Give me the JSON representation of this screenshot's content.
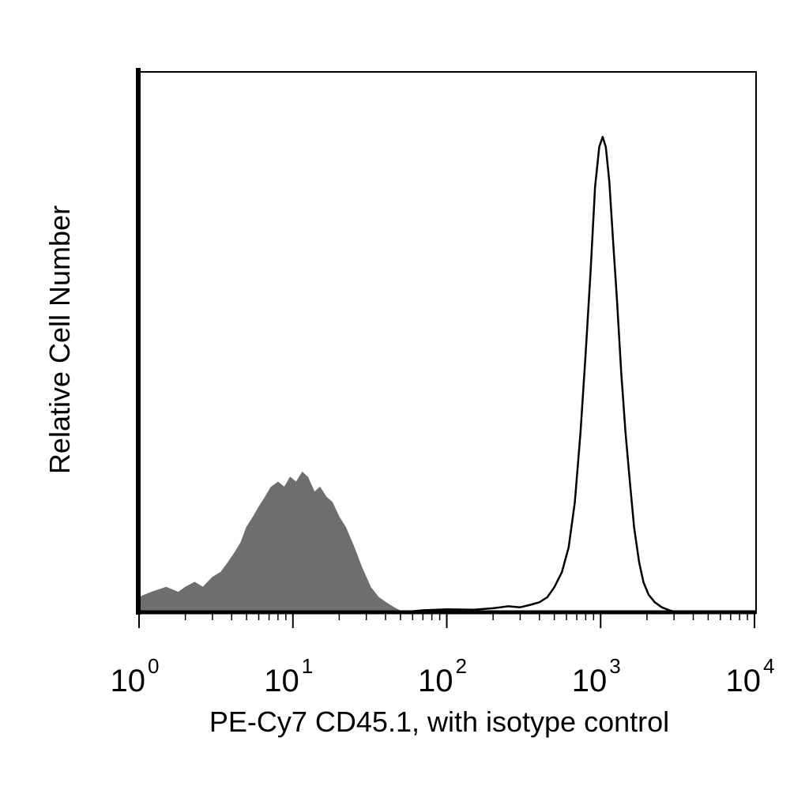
{
  "chart_data": {
    "type": "area",
    "title": "",
    "xlabel": "PE-Cy7 CD45.1, with isotype control",
    "ylabel": "Relative Cell Number",
    "x_scale": "log",
    "xlim": [
      1,
      10000
    ],
    "ylim": [
      0,
      1.08
    ],
    "grid": false,
    "legend": "none",
    "x_ticks": [
      {
        "base": "10",
        "exp": "0",
        "value": 1
      },
      {
        "base": "10",
        "exp": "1",
        "value": 10
      },
      {
        "base": "10",
        "exp": "2",
        "value": 100
      },
      {
        "base": "10",
        "exp": "3",
        "value": 1000
      },
      {
        "base": "10",
        "exp": "4",
        "value": 10000
      }
    ],
    "series": [
      {
        "role": "isotype control",
        "style": "filled",
        "color": "#6e6e6e",
        "points": [
          [
            1.0,
            0.03
          ],
          [
            1.2,
            0.04
          ],
          [
            1.5,
            0.05
          ],
          [
            1.8,
            0.04
          ],
          [
            2.0,
            0.05
          ],
          [
            2.3,
            0.06
          ],
          [
            2.6,
            0.05
          ],
          [
            3.0,
            0.07
          ],
          [
            3.4,
            0.08
          ],
          [
            3.8,
            0.1
          ],
          [
            4.2,
            0.12
          ],
          [
            4.6,
            0.14
          ],
          [
            5.0,
            0.17
          ],
          [
            5.5,
            0.19
          ],
          [
            6.0,
            0.21
          ],
          [
            6.6,
            0.23
          ],
          [
            7.2,
            0.25
          ],
          [
            8.0,
            0.26
          ],
          [
            8.8,
            0.25
          ],
          [
            9.6,
            0.27
          ],
          [
            10.5,
            0.26
          ],
          [
            11.5,
            0.28
          ],
          [
            12.5,
            0.27
          ],
          [
            13.8,
            0.24
          ],
          [
            15.0,
            0.25
          ],
          [
            16.5,
            0.23
          ],
          [
            18.0,
            0.22
          ],
          [
            20.0,
            0.19
          ],
          [
            22.0,
            0.17
          ],
          [
            25.0,
            0.13
          ],
          [
            28.0,
            0.09
          ],
          [
            32.0,
            0.05
          ],
          [
            36.0,
            0.03
          ],
          [
            40.0,
            0.02
          ],
          [
            45.0,
            0.01
          ],
          [
            52.0,
            0.0
          ]
        ]
      },
      {
        "role": "PE-Cy7 CD45.1",
        "style": "line",
        "color": "#000000",
        "points": [
          [
            50,
            0.0
          ],
          [
            70,
            0.004
          ],
          [
            100,
            0.006
          ],
          [
            150,
            0.005
          ],
          [
            200,
            0.008
          ],
          [
            250,
            0.012
          ],
          [
            300,
            0.01
          ],
          [
            350,
            0.015
          ],
          [
            400,
            0.02
          ],
          [
            450,
            0.03
          ],
          [
            500,
            0.05
          ],
          [
            560,
            0.08
          ],
          [
            620,
            0.13
          ],
          [
            680,
            0.22
          ],
          [
            740,
            0.36
          ],
          [
            800,
            0.52
          ],
          [
            860,
            0.68
          ],
          [
            920,
            0.85
          ],
          [
            980,
            0.93
          ],
          [
            1030,
            0.95
          ],
          [
            1080,
            0.93
          ],
          [
            1140,
            0.86
          ],
          [
            1200,
            0.75
          ],
          [
            1280,
            0.62
          ],
          [
            1360,
            0.48
          ],
          [
            1450,
            0.36
          ],
          [
            1550,
            0.26
          ],
          [
            1650,
            0.17
          ],
          [
            1780,
            0.1
          ],
          [
            1900,
            0.06
          ],
          [
            2050,
            0.035
          ],
          [
            2250,
            0.02
          ],
          [
            2500,
            0.01
          ],
          [
            2800,
            0.004
          ],
          [
            3100,
            0.0
          ],
          [
            4000,
            0.0
          ],
          [
            10000,
            0.0
          ]
        ]
      }
    ]
  }
}
